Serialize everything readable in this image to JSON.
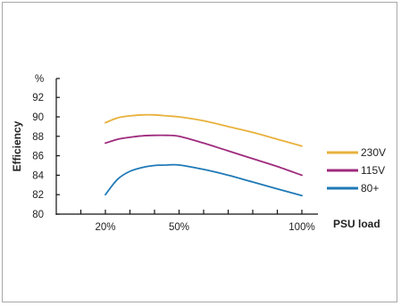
{
  "chart_data": {
    "type": "line",
    "title": "",
    "ylabel": "Efficiency",
    "yunit": "%",
    "xlabel": "PSU load",
    "ylim": [
      80,
      93
    ],
    "xlim": [
      0,
      110
    ],
    "yticks": [
      80,
      82,
      84,
      86,
      88,
      90,
      92
    ],
    "xticks": [
      {
        "value": 20,
        "label": "20%"
      },
      {
        "value": 50,
        "label": "50%"
      },
      {
        "value": 100,
        "label": "100%"
      }
    ],
    "minor_xticks": [
      10,
      20,
      30,
      40,
      50,
      60,
      70,
      80,
      90,
      100
    ],
    "grid": false,
    "legend_position": "right",
    "series": [
      {
        "name": "230V",
        "color": "#e8b13c",
        "x": [
          20,
          25,
          30,
          35,
          40,
          45,
          50,
          60,
          70,
          80,
          90,
          100
        ],
        "values": [
          89.4,
          89.9,
          90.1,
          90.2,
          90.2,
          90.1,
          90.0,
          89.6,
          89.0,
          88.4,
          87.7,
          87.0
        ]
      },
      {
        "name": "115V",
        "color": "#9e2a7d",
        "x": [
          20,
          25,
          30,
          35,
          40,
          45,
          50,
          60,
          70,
          80,
          90,
          100
        ],
        "values": [
          87.3,
          87.7,
          87.9,
          88.05,
          88.1,
          88.1,
          88.0,
          87.3,
          86.5,
          85.7,
          84.9,
          84.0
        ]
      },
      {
        "name": "80+",
        "color": "#1f79b7",
        "x": [
          20,
          25,
          30,
          35,
          40,
          45,
          50,
          60,
          70,
          80,
          90,
          100
        ],
        "values": [
          82.0,
          83.6,
          84.4,
          84.8,
          85.0,
          85.05,
          85.05,
          84.6,
          84.0,
          83.3,
          82.6,
          81.9
        ]
      }
    ]
  }
}
